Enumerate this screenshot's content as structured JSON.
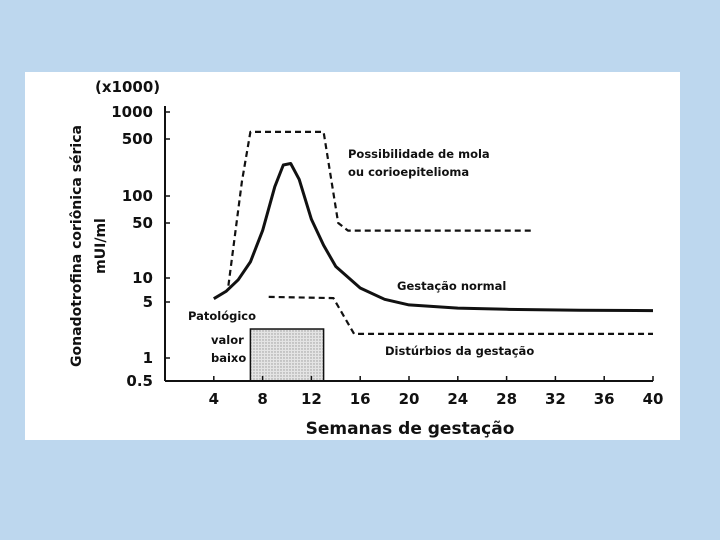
{
  "chart_data": {
    "type": "line",
    "y_scale": "log",
    "multiplier_label": "(x1000)",
    "xlabel": "Semanas de gestação",
    "ylabel_line1": "Gonadotrofina coriônica sérica",
    "ylabel_line2": "mUI/ml",
    "x_ticks": [
      4,
      8,
      12,
      16,
      20,
      24,
      28,
      32,
      36,
      40
    ],
    "y_ticks": [
      {
        "value": 1000,
        "label": "1000"
      },
      {
        "value": 500,
        "label": "500"
      },
      {
        "value": 100,
        "label": "100"
      },
      {
        "value": 50,
        "label": "50"
      },
      {
        "value": 10,
        "label": "10"
      },
      {
        "value": 5,
        "label": "5"
      },
      {
        "value": 1,
        "label": "1"
      },
      {
        "value": 0.5,
        "label": "0.5"
      }
    ],
    "xlim": [
      0,
      40
    ],
    "ylim": [
      0.5,
      1000
    ],
    "series": [
      {
        "name": "Gestação normal",
        "style": "solid",
        "points": [
          [
            4,
            5.5
          ],
          [
            5,
            6.8
          ],
          [
            6,
            9.5
          ],
          [
            7,
            16
          ],
          [
            8,
            40
          ],
          [
            9,
            130
          ],
          [
            9.7,
            240
          ],
          [
            10.3,
            250
          ],
          [
            11,
            160
          ],
          [
            12,
            55
          ],
          [
            13,
            26
          ],
          [
            14,
            14
          ],
          [
            16,
            7.5
          ],
          [
            18,
            5.4
          ],
          [
            20,
            4.6
          ],
          [
            24,
            4.2
          ],
          [
            28,
            4.05
          ],
          [
            34,
            3.95
          ],
          [
            40,
            3.9
          ]
        ]
      },
      {
        "name": "Possibilidade de mola ou corioepitelioma",
        "style": "dashed",
        "points": [
          [
            5.2,
            8
          ],
          [
            6.3,
            150
          ],
          [
            7,
            600
          ],
          [
            13,
            600
          ],
          [
            14.2,
            50
          ],
          [
            15,
            40
          ],
          [
            30,
            40
          ]
        ]
      },
      {
        "name": "Distúrbios da gestação",
        "style": "dashed",
        "points": [
          [
            8.5,
            5.8
          ],
          [
            13.8,
            5.6
          ],
          [
            15.5,
            2
          ],
          [
            40,
            2
          ]
        ]
      }
    ],
    "shaded_region": {
      "x": [
        7,
        13
      ],
      "y": [
        0.5,
        2.3
      ]
    },
    "annotations": [
      "Possibilidade de mola",
      "ou corioepitelioma",
      "Gestação normal",
      "Distúrbios da gestação",
      "Patológico",
      "valor",
      "baixo"
    ]
  }
}
